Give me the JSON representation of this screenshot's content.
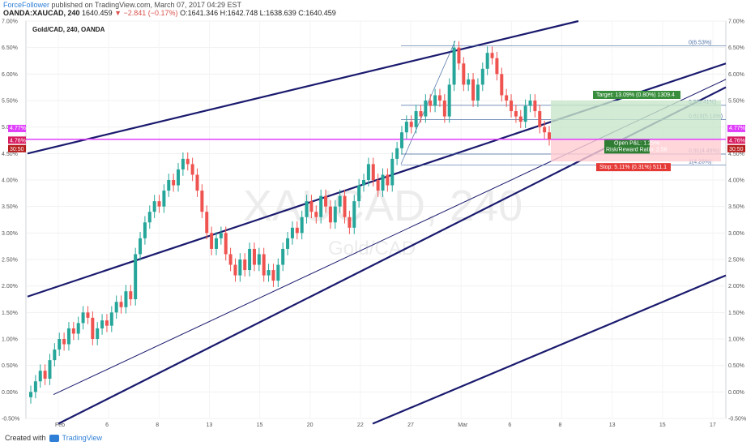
{
  "header": {
    "author": "ForceFollower",
    "published": "published on TradingView.com, March 07, 2017 04:29 EST",
    "symbol": "OANDA:XAUCAD, 240",
    "last": "1640.459",
    "change": "▼ −2.841 (−0.17%)",
    "ohlc": "O:1641.346 H:1642.748 L:1638.639 C:1640.459"
  },
  "chart_data": {
    "type": "candlestick",
    "title": "Gold/CAD, 240, OANDA",
    "watermark_symbol": "XAUCAD, 240",
    "watermark_name": "Gold/CAD",
    "y_scale": "percent",
    "ylim": [
      -0.5,
      7.0
    ],
    "y_ticks": [
      "-0.50%",
      "0.00%",
      "0.50%",
      "1.00%",
      "1.50%",
      "2.00%",
      "2.50%",
      "3.00%",
      "3.50%",
      "4.00%",
      "4.50%",
      "5.00%",
      "5.50%",
      "6.00%",
      "6.50%",
      "7.00%"
    ],
    "x_ticks": [
      "Feb",
      "6",
      "8",
      "13",
      "15",
      "20",
      "22",
      "27",
      "Mar",
      "6",
      "8",
      "13",
      "15",
      "17"
    ],
    "price_closes_pct": [
      0.0,
      0.2,
      0.4,
      0.25,
      0.6,
      0.8,
      1.0,
      0.9,
      1.2,
      1.1,
      1.3,
      1.5,
      1.4,
      1.0,
      1.2,
      1.35,
      1.25,
      1.5,
      1.7,
      1.6,
      1.9,
      1.75,
      2.6,
      2.9,
      3.2,
      3.4,
      3.6,
      3.5,
      3.8,
      4.0,
      3.9,
      4.2,
      4.4,
      4.3,
      4.1,
      3.8,
      3.4,
      3.0,
      2.7,
      2.9,
      3.0,
      2.6,
      2.4,
      2.2,
      2.5,
      2.3,
      2.7,
      2.4,
      2.6,
      2.2,
      2.3,
      2.1,
      2.4,
      2.7,
      2.9,
      3.1,
      3.0,
      3.3,
      3.6,
      3.4,
      3.3,
      3.7,
      3.5,
      3.2,
      3.5,
      3.7,
      3.3,
      3.1,
      3.6,
      3.9,
      4.0,
      4.3,
      4.0,
      3.8,
      4.1,
      3.9,
      4.4,
      4.6,
      4.9,
      5.1,
      5.0,
      5.3,
      5.2,
      5.5,
      5.4,
      5.6,
      5.5,
      5.2,
      5.8,
      6.5,
      6.2,
      5.8,
      5.9,
      5.5,
      5.8,
      6.1,
      6.4,
      6.3,
      6.0,
      5.6,
      5.5,
      5.3,
      5.2,
      5.1,
      5.4,
      5.5,
      5.3,
      5.0,
      4.9,
      4.77
    ],
    "current_price_label": "4.76%",
    "upper_label": "4.77%",
    "countdown": "30:50",
    "fib_levels": [
      {
        "label": "0(6.53%)",
        "value": 6.53
      },
      {
        "label": "0.5(5.41%)",
        "value": 5.41
      },
      {
        "label": "0.618(5.14%)",
        "value": 5.14
      },
      {
        "label": "0.91(4.49%)",
        "value": 4.49
      },
      {
        "label": "1(4.28%)",
        "value": 4.28
      }
    ],
    "position": {
      "entry": 4.76,
      "target": 5.5,
      "stop": 4.35,
      "target_label": "Target: 13.09% (0.80%) 1309.4",
      "stop_label": "Stop: 5.11% (0.31%) 511.1",
      "pnl_label": "Open P&L: 1.25%",
      "rr_label": "Risk/Reward Ratio: 2.56"
    },
    "colors": {
      "up": "#26a69a",
      "down": "#ef5350",
      "channel": "#1a1a6e",
      "magenta": "#e040fb",
      "target": "#c8e6c9",
      "stop": "#ffcdd2",
      "fib": "#4a6fa5"
    }
  },
  "footer": {
    "created": "Created with",
    "brand": "TradingView"
  }
}
